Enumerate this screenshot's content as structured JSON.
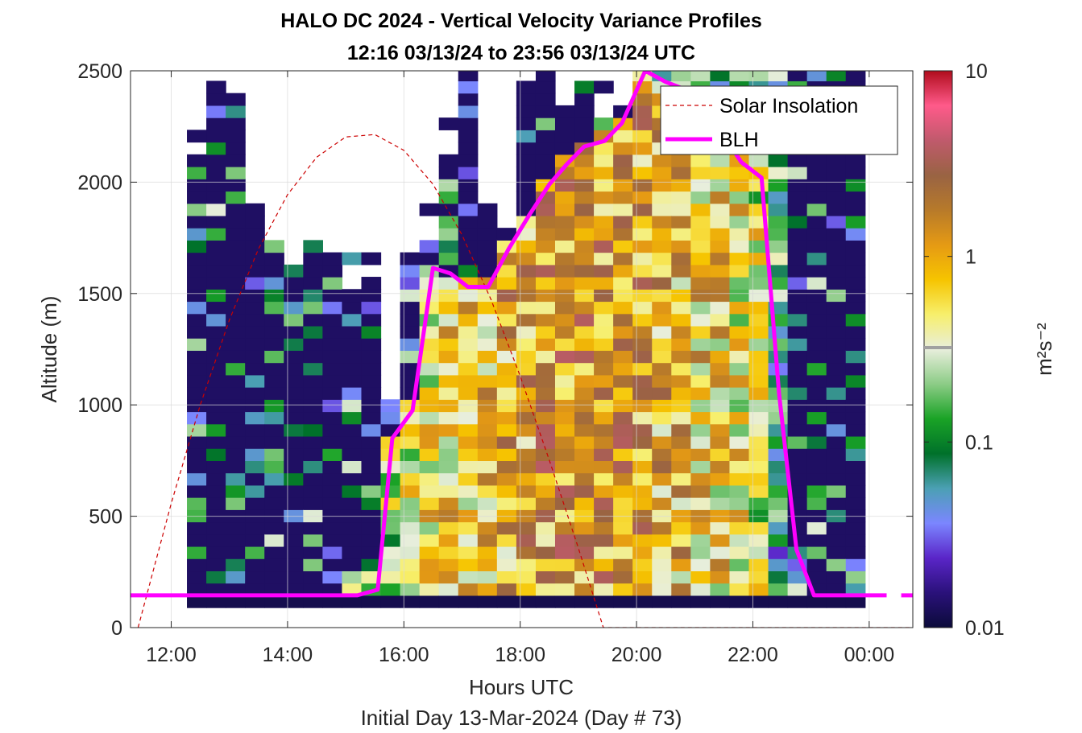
{
  "chart_data": {
    "type": "heatmap",
    "title_line1": "HALO DC 2024 - Vertical Velocity Variance Profiles",
    "title_line2": "12:16 03/13/24 to 23:56 03/13/24  UTC",
    "xlabel": "Hours UTC",
    "xlabel2": "Initial Day 13-Mar-2024 (Day # 73)",
    "ylabel": "Altitude (m)",
    "colorbar_label": "m²s⁻²",
    "colorbar_scale": "log",
    "colorbar_range": [
      0.01,
      10
    ],
    "colorbar_ticks": [
      "0.01",
      "0.1",
      "1",
      "10"
    ],
    "xlim_hours": [
      11.3,
      24.75
    ],
    "ylim": [
      0,
      2500
    ],
    "x_ticks": [
      {
        "h": 12,
        "label": "12:00"
      },
      {
        "h": 14,
        "label": "14:00"
      },
      {
        "h": 16,
        "label": "16:00"
      },
      {
        "h": 18,
        "label": "18:00"
      },
      {
        "h": 20,
        "label": "20:00"
      },
      {
        "h": 22,
        "label": "22:00"
      },
      {
        "h": 24,
        "label": "00:00"
      }
    ],
    "y_ticks": [
      0,
      500,
      1000,
      1500,
      2000,
      2500
    ],
    "grid": true,
    "legend_position": "top-right",
    "series": [
      {
        "name": "Solar Insolation",
        "color": "#cc0000",
        "style": "dashed",
        "points": [
          [
            11.43,
            0
          ],
          [
            11.7,
            265
          ],
          [
            12.0,
            557
          ],
          [
            12.5,
            1000
          ],
          [
            13.0,
            1381
          ],
          [
            13.5,
            1700
          ],
          [
            14.0,
            1944
          ],
          [
            14.5,
            2112
          ],
          [
            15.0,
            2203
          ],
          [
            15.5,
            2214
          ],
          [
            16.0,
            2143
          ],
          [
            16.5,
            1991
          ],
          [
            17.0,
            1763
          ],
          [
            17.5,
            1472
          ],
          [
            18.0,
            1129
          ],
          [
            18.5,
            752
          ],
          [
            19.0,
            357
          ],
          [
            19.43,
            0
          ],
          [
            24.75,
            0
          ]
        ],
        "comment": "curve points in data units (hours, m)"
      },
      {
        "name": "BLH",
        "color": "#ff00ff",
        "style": "solid",
        "points": [
          [
            11.3,
            145
          ],
          [
            12.5,
            145
          ],
          [
            14.1,
            145
          ],
          [
            15.2,
            145
          ],
          [
            15.55,
            170
          ],
          [
            15.8,
            850
          ],
          [
            16.15,
            975
          ],
          [
            16.5,
            1615
          ],
          [
            16.8,
            1590
          ],
          [
            17.1,
            1530
          ],
          [
            17.45,
            1530
          ],
          [
            17.8,
            1700
          ],
          [
            18.15,
            1850
          ],
          [
            18.5,
            1990
          ],
          [
            18.8,
            2080
          ],
          [
            19.1,
            2160
          ],
          [
            19.45,
            2185
          ],
          [
            19.75,
            2265
          ],
          [
            20.15,
            2500
          ],
          [
            20.5,
            2450
          ],
          [
            20.8,
            2420
          ],
          [
            21.1,
            2390
          ],
          [
            21.45,
            2230
          ],
          [
            21.8,
            2090
          ],
          [
            22.15,
            2020
          ],
          [
            22.45,
            1050
          ],
          [
            22.75,
            350
          ],
          [
            23.05,
            145
          ],
          [
            24.0,
            145
          ],
          [
            24.3,
            145
          ]
        ],
        "trailing_segment": [
          [
            24.55,
            145
          ],
          [
            24.75,
            145
          ]
        ]
      }
    ],
    "heatmap_spec": {
      "time_start_h": 12.27,
      "time_end_h": 23.93,
      "bins": 35,
      "alt_start_m": 90,
      "alt_bin_m": 55,
      "cap_top_m": 2500,
      "cloud_top_m": [
        2100,
        2400,
        2300,
        1850,
        1700,
        1600,
        1650,
        1580,
        1500,
        1500,
        1000,
        1650,
        1700,
        2100,
        2500,
        1850,
        1750,
        2350,
        2500,
        2300,
        2400,
        2250,
        2300,
        2500,
        2500,
        2500,
        2500,
        2500,
        2500,
        2500,
        2500,
        2500,
        2500,
        2500,
        2500
      ],
      "boundary_layer_top_m": [
        145,
        145,
        145,
        145,
        145,
        145,
        145,
        145,
        160,
        300,
        850,
        975,
        1600,
        1550,
        1530,
        1530,
        1700,
        1850,
        1990,
        2080,
        2160,
        2185,
        2265,
        2500,
        2450,
        2420,
        2390,
        2230,
        2090,
        2020,
        1050,
        350,
        145,
        145,
        145
      ],
      "variance_comment": "Variance in m^2 s^-2 shown on a log colour scale from 0.01 (navy) to 10 (red)."
    }
  },
  "colors": {
    "colormap_stops": [
      "#0b0b3a",
      "#2a117a",
      "#5a25c8",
      "#7b86ff",
      "#4ba0b4",
      "#00712a",
      "#1aa326",
      "#8ccc86",
      "#e8eedc",
      "#f7ef6c",
      "#f6c400",
      "#e59a14",
      "#b77a2a",
      "#996343",
      "#c05a6c",
      "#ff5a8a",
      "#b00c1c"
    ]
  }
}
